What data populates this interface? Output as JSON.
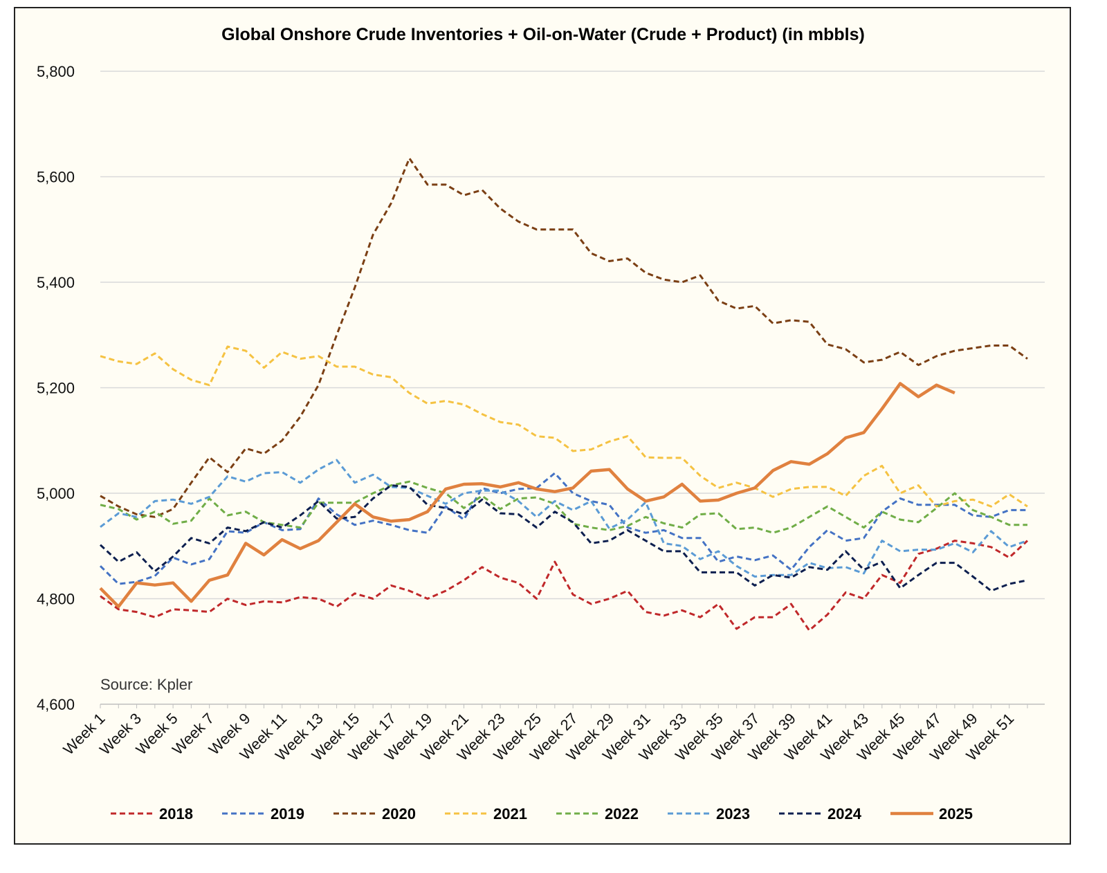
{
  "chart_data": {
    "type": "line",
    "title": "Global Onshore Crude Inventories + Oil-on-Water (Crude + Product) (in mbbls)",
    "source": "Source: Kpler",
    "xlabel": "",
    "ylabel": "",
    "ylim": [
      4600,
      5800
    ],
    "yticks": [
      4600,
      4800,
      5000,
      5200,
      5400,
      5600,
      5800
    ],
    "ytick_labels": [
      "4,600",
      "4,800",
      "5,000",
      "5,200",
      "5,400",
      "5,600",
      "5,800"
    ],
    "x_tick_labels": [
      "Week 1",
      "Week 3",
      "Week 5",
      "Week 7",
      "Week 9",
      "Week 11",
      "Week 13",
      "Week 15",
      "Week 17",
      "Week 19",
      "Week 21",
      "Week 23",
      "Week 25",
      "Week 27",
      "Week 29",
      "Week 31",
      "Week 33",
      "Week 35",
      "Week 37",
      "Week 39",
      "Week 41",
      "Week 43",
      "Week 45",
      "Week 47",
      "Week 49",
      "Week 51"
    ],
    "num_weeks": 52,
    "grid": "horizontal",
    "legend_position": "bottom",
    "series": [
      {
        "name": "2018",
        "color": "#c0282a",
        "style": "dashed",
        "values": [
          4805,
          4780,
          4775,
          4765,
          4780,
          4778,
          4775,
          4800,
          4788,
          4795,
          4793,
          4803,
          4800,
          4785,
          4810,
          4800,
          4825,
          4815,
          4800,
          4815,
          4835,
          4860,
          4840,
          4830,
          4800,
          4870,
          4808,
          4790,
          4800,
          4815,
          4775,
          4768,
          4778,
          4765,
          4790,
          4743,
          4765,
          4765,
          4790,
          4740,
          4770,
          4812,
          4800,
          4845,
          4830,
          4885,
          4895,
          4910,
          4905,
          4898,
          4878,
          4910
        ]
      },
      {
        "name": "2019",
        "color": "#4472c4",
        "style": "dashed",
        "values": [
          4862,
          4828,
          4832,
          4843,
          4878,
          4865,
          4875,
          4928,
          4925,
          4945,
          4930,
          4932,
          4990,
          4960,
          4940,
          4948,
          4940,
          4930,
          4925,
          4975,
          4950,
          5010,
          5000,
          5008,
          5010,
          5038,
          5000,
          4985,
          4978,
          4935,
          4925,
          4930,
          4915,
          4915,
          4870,
          4880,
          4873,
          4882,
          4855,
          4898,
          4930,
          4910,
          4915,
          4965,
          4990,
          4978,
          4978,
          4978,
          4958,
          4955,
          4968,
          4968
        ]
      },
      {
        "name": "2020",
        "color": "#7b3f14",
        "style": "dashed",
        "values": [
          4995,
          4975,
          4960,
          4955,
          4970,
          5020,
          5068,
          5040,
          5085,
          5075,
          5100,
          5145,
          5205,
          5300,
          5390,
          5490,
          5550,
          5635,
          5585,
          5585,
          5565,
          5575,
          5540,
          5515,
          5500,
          5500,
          5500,
          5455,
          5440,
          5445,
          5418,
          5405,
          5400,
          5413,
          5365,
          5350,
          5355,
          5322,
          5328,
          5325,
          5282,
          5273,
          5248,
          5253,
          5268,
          5243,
          5260,
          5270,
          5275,
          5280,
          5280,
          5255
        ]
      },
      {
        "name": "2021",
        "color": "#f5c242",
        "style": "dashed",
        "values": [
          5260,
          5250,
          5245,
          5265,
          5235,
          5215,
          5205,
          5278,
          5270,
          5238,
          5268,
          5255,
          5260,
          5240,
          5240,
          5225,
          5220,
          5190,
          5170,
          5175,
          5168,
          5150,
          5135,
          5130,
          5108,
          5105,
          5080,
          5083,
          5098,
          5108,
          5068,
          5067,
          5067,
          5033,
          5010,
          5020,
          5010,
          4993,
          5008,
          5012,
          5012,
          4995,
          5033,
          5052,
          5000,
          5015,
          4975,
          4985,
          4988,
          4975,
          4998,
          4975
        ]
      },
      {
        "name": "2022",
        "color": "#70ad47",
        "style": "dashed",
        "values": [
          4978,
          4970,
          4950,
          4965,
          4942,
          4948,
          4990,
          4958,
          4965,
          4945,
          4940,
          4935,
          4982,
          4982,
          4982,
          5000,
          5015,
          5022,
          5010,
          5000,
          4972,
          4995,
          4970,
          4990,
          4992,
          4980,
          4942,
          4935,
          4930,
          4938,
          4955,
          4943,
          4935,
          4960,
          4962,
          4932,
          4935,
          4925,
          4935,
          4955,
          4975,
          4955,
          4935,
          4965,
          4950,
          4945,
          4972,
          5000,
          4968,
          4955,
          4940,
          4940
        ]
      },
      {
        "name": "2023",
        "color": "#5b9bd5",
        "style": "dashed",
        "values": [
          4936,
          4962,
          4955,
          4985,
          4988,
          4980,
          4993,
          5032,
          5022,
          5038,
          5040,
          5020,
          5045,
          5063,
          5020,
          5035,
          5012,
          5010,
          4995,
          4980,
          5000,
          5005,
          5005,
          4985,
          4955,
          4985,
          4968,
          4985,
          4933,
          4950,
          4983,
          4905,
          4900,
          4875,
          4890,
          4862,
          4842,
          4845,
          4845,
          4868,
          4858,
          4860,
          4848,
          4910,
          4890,
          4893,
          4893,
          4905,
          4888,
          4928,
          4898,
          4910
        ]
      },
      {
        "name": "2024",
        "color": "#0d1f4f",
        "style": "dashed",
        "values": [
          4902,
          4870,
          4888,
          4852,
          4880,
          4915,
          4905,
          4935,
          4928,
          4945,
          4935,
          4958,
          4985,
          4952,
          4955,
          4990,
          5015,
          5012,
          4978,
          4972,
          4960,
          4988,
          4962,
          4960,
          4935,
          4965,
          4945,
          4905,
          4910,
          4930,
          4910,
          4890,
          4890,
          4850,
          4850,
          4850,
          4825,
          4845,
          4840,
          4860,
          4855,
          4890,
          4855,
          4870,
          4820,
          4845,
          4868,
          4868,
          4842,
          4815,
          4828,
          4835
        ]
      },
      {
        "name": "2025",
        "color": "#e0813f",
        "style": "solid",
        "values": [
          4820,
          4785,
          4830,
          4826,
          4830,
          4795,
          4835,
          4845,
          4905,
          4883,
          4912,
          4895,
          4910,
          4945,
          4980,
          4955,
          4947,
          4950,
          4965,
          5008,
          5017,
          5018,
          5012,
          5020,
          5008,
          5003,
          5010,
          5042,
          5045,
          5008,
          4985,
          4993,
          5017,
          4985,
          4987,
          5000,
          5010,
          5043,
          5060,
          5055,
          5075,
          5105,
          5115,
          5160,
          5208,
          5183,
          5205,
          5190
        ]
      }
    ]
  }
}
